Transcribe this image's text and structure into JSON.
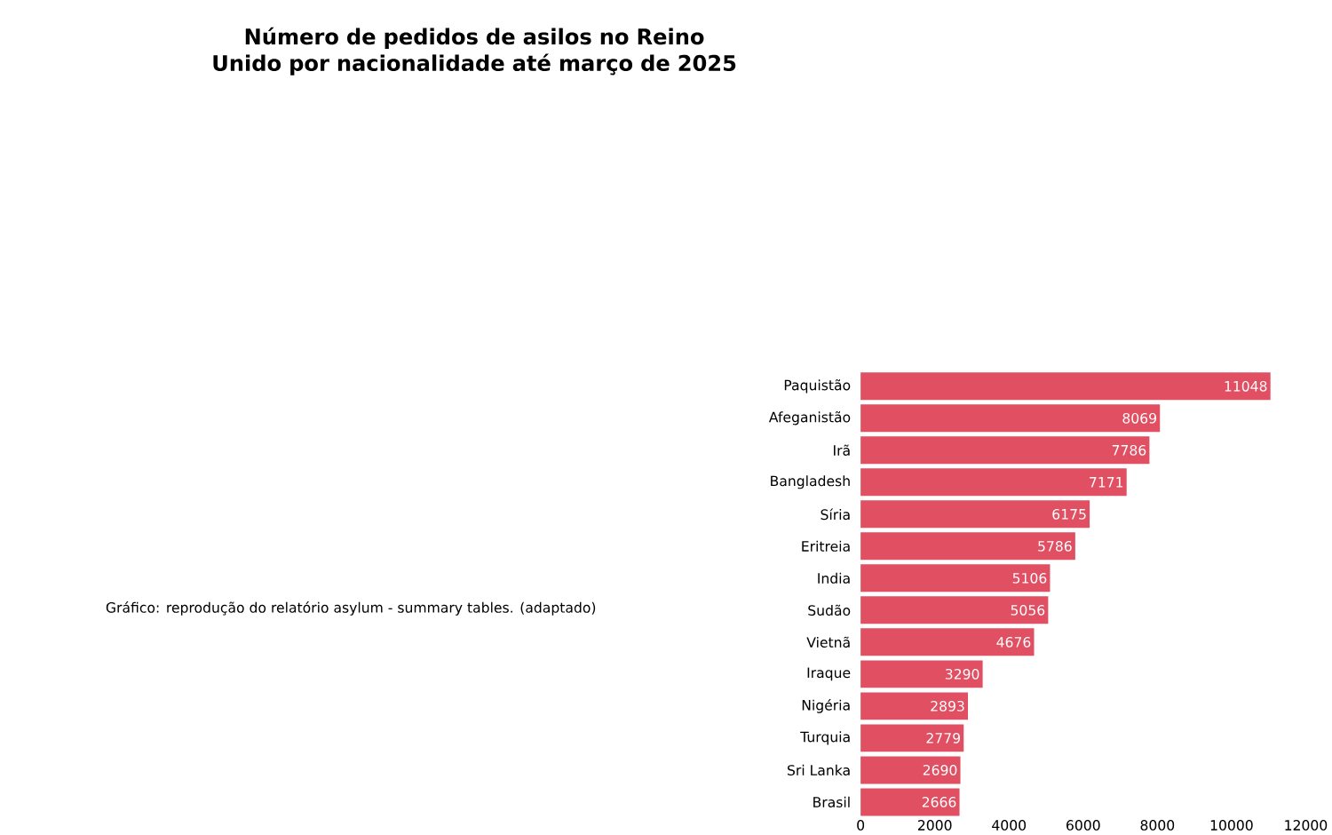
{
  "chart_data": {
    "type": "bar",
    "orientation": "horizontal",
    "title": "Número de pedidos de asilos no Reino Unido por nacionalidade até março de 2025",
    "categories": [
      "Paquistão",
      "Afeganistão",
      "Irã",
      "Bangladesh",
      "Síria",
      "Eritreia",
      "India",
      "Sudão",
      "Vietnã",
      "Iraque",
      "Nigéria",
      "Turquia",
      "Sri Lanka",
      "Brasil"
    ],
    "values": [
      11048,
      8069,
      7786,
      7171,
      6175,
      5786,
      5106,
      5056,
      4676,
      3290,
      2893,
      2779,
      2690,
      2666
    ],
    "color": "#e04f62",
    "xlim": [
      0,
      12000
    ],
    "xticks": [
      0,
      2000,
      4000,
      6000,
      8000,
      10000,
      12000
    ],
    "data_labels": true,
    "annotations": [
      "Gráfico: reprodução do relatório asylum - summary tables. (adaptado)"
    ]
  }
}
